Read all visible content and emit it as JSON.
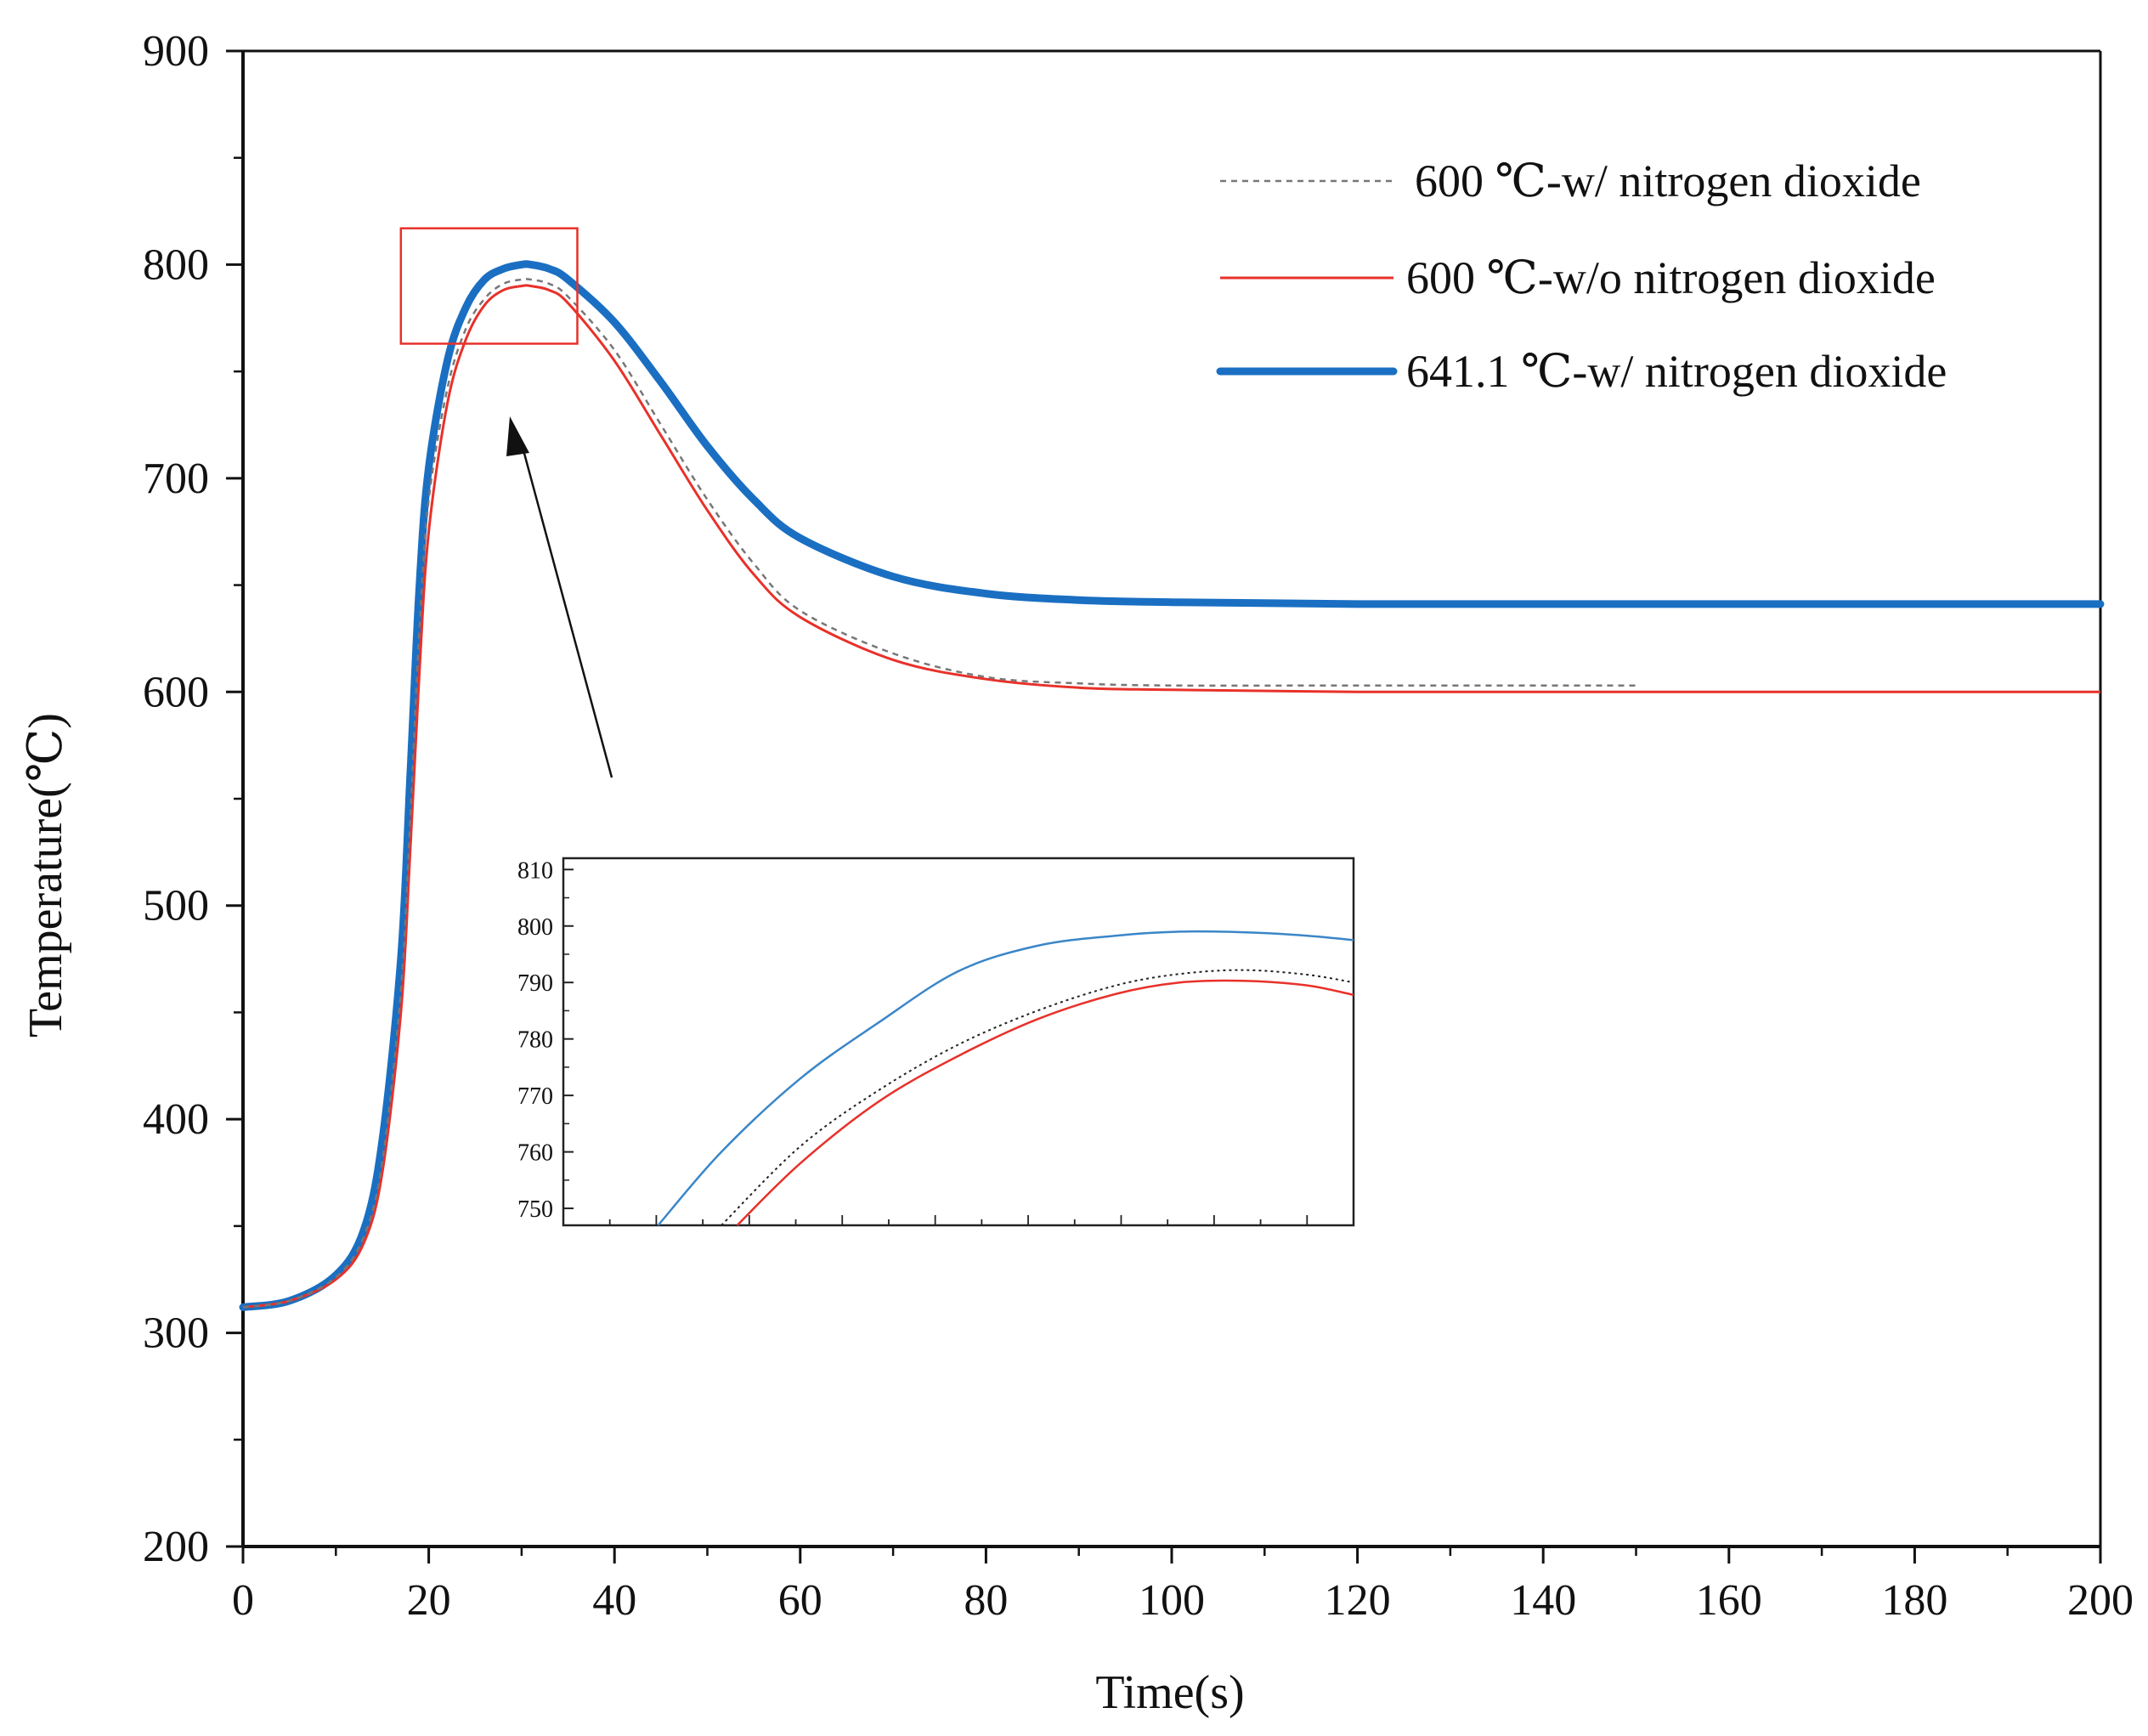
{
  "chart_data": {
    "type": "line",
    "title": "",
    "xlabel": "Time(s)",
    "ylabel": "Temperature(℃)",
    "xlim": [
      0,
      200
    ],
    "ylim": [
      200,
      900
    ],
    "xticks": [
      0,
      20,
      40,
      60,
      80,
      100,
      120,
      140,
      160,
      180,
      200
    ],
    "yticks": [
      200,
      300,
      400,
      500,
      600,
      700,
      800,
      900
    ],
    "xtick_labels": [
      "0",
      "20",
      "40",
      "60",
      "80",
      "100",
      "120",
      "140",
      "160",
      "180",
      "200"
    ],
    "ytick_labels": [
      "200",
      "300",
      "400",
      "500",
      "600",
      "700",
      "800",
      "900"
    ],
    "legend_position": "top-right",
    "grid": false,
    "series": [
      {
        "name": "600 ℃-w/ nitrogen dioxide",
        "color": "#777777",
        "style": "dashed",
        "x": [
          0,
          5,
          10,
          13,
          15,
          17,
          18,
          19,
          20,
          22,
          24,
          26,
          28,
          30,
          31,
          33,
          35,
          40,
          45,
          50,
          55,
          60,
          70,
          80,
          90,
          100,
          120,
          150
        ],
        "y": [
          312,
          315,
          326,
          345,
          380,
          460,
          540,
          630,
          690,
          742,
          770,
          784,
          791,
          793,
          793,
          791,
          785,
          760,
          725,
          690,
          660,
          638,
          618,
          607,
          604,
          603,
          603,
          603
        ]
      },
      {
        "name": "600 ℃-w/o nitrogen dioxide",
        "color": "#e8312a",
        "style": "solid",
        "x": [
          0,
          5,
          10,
          13,
          15,
          17,
          18,
          19,
          20,
          22,
          24,
          26,
          28,
          30,
          31,
          33,
          35,
          40,
          45,
          50,
          55,
          60,
          70,
          80,
          90,
          100,
          120,
          150,
          200
        ],
        "y": [
          312,
          315,
          325,
          342,
          375,
          450,
          525,
          610,
          675,
          735,
          765,
          781,
          788,
          790,
          790,
          788,
          782,
          755,
          720,
          685,
          655,
          635,
          615,
          606,
          602,
          601,
          600,
          600,
          600
        ]
      },
      {
        "name": "641.1 ℃-w/ nitrogen dioxide",
        "color": "#1a6fc2",
        "style": "solid-thick",
        "x": [
          0,
          5,
          10,
          13,
          15,
          17,
          18,
          19,
          20,
          22,
          24,
          26,
          28,
          30,
          31,
          33,
          35,
          40,
          45,
          50,
          55,
          60,
          70,
          80,
          90,
          100,
          120,
          150,
          200
        ],
        "y": [
          312,
          315,
          327,
          348,
          390,
          475,
          560,
          650,
          705,
          755,
          780,
          793,
          798,
          800,
          800,
          798,
          793,
          773,
          745,
          715,
          690,
          672,
          654,
          646,
          643,
          642,
          641.1,
          641.1,
          641.1
        ]
      }
    ],
    "highlight_box": {
      "x_range": [
        17,
        36
      ],
      "y_range": [
        763,
        817
      ]
    },
    "annotation": "arrow pointing from inset to highlighted peak region",
    "inset": {
      "type": "line",
      "yticks": [
        750,
        760,
        770,
        780,
        790,
        800,
        810
      ],
      "ytick_labels": [
        "750",
        "760",
        "770",
        "780",
        "790",
        "800",
        "810"
      ],
      "ylim": [
        747,
        812
      ],
      "xlim": [
        0,
        1
      ],
      "series": [
        {
          "name": "641.1 ℃-w/ nitrogen dioxide",
          "x": [
            0.12,
            0.2,
            0.3,
            0.4,
            0.5,
            0.6,
            0.7,
            0.78,
            0.86,
            0.94,
            1.0
          ],
          "y": [
            747,
            760,
            773,
            783,
            792,
            796.5,
            798.3,
            799,
            798.9,
            798.3,
            797.5
          ]
        },
        {
          "name": "600 ℃-w/ nitrogen dioxide",
          "x": [
            0.2,
            0.3,
            0.4,
            0.5,
            0.6,
            0.7,
            0.78,
            0.86,
            0.94,
            1.0
          ],
          "y": [
            747,
            761,
            771,
            779,
            785,
            789.5,
            791.5,
            792.2,
            791.4,
            790
          ]
        },
        {
          "name": "600 ℃-w/o nitrogen dioxide",
          "x": [
            0.22,
            0.3,
            0.4,
            0.5,
            0.6,
            0.7,
            0.78,
            0.86,
            0.94,
            1.0
          ],
          "y": [
            747,
            758,
            769,
            777,
            783.5,
            788,
            790,
            790.3,
            789.5,
            787.8
          ]
        }
      ]
    }
  }
}
